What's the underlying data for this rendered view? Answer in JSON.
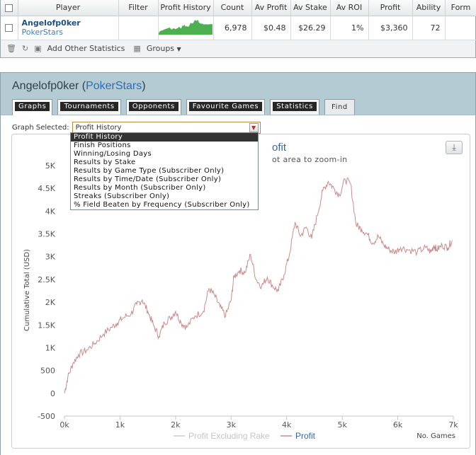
{
  "table": {
    "headers": [
      "Player",
      "Filter",
      "Profit History",
      "Count",
      "Av Profit",
      "Av Stake",
      "Av ROI",
      "Profit",
      "Ability",
      "Form"
    ],
    "row": {
      "player": "Angelofp0ker",
      "site": "PokerStars",
      "filter": "",
      "count": "6,978",
      "av_profit": "$0.48",
      "av_stake": "$26.29",
      "av_roi": "1%",
      "profit": "$3,360",
      "ability": "72",
      "form": ""
    },
    "sparkline_color": "#4caf50"
  },
  "footer": {
    "add_stats_label": "Add Other Statistics",
    "groups_label": "Groups"
  },
  "panel": {
    "title_name": "Angelofp0ker",
    "title_site": "PokerStars",
    "tabs": [
      "Graphs",
      "Tournaments",
      "Opponents",
      "Favourite Games",
      "Statistics",
      "Find"
    ],
    "active_tab": "Graphs"
  },
  "graph_select": {
    "label": "Graph Selected:",
    "value": "Profit History",
    "options": [
      "Profit History",
      "Finish Positions",
      "Winning/Losing Days",
      "Results by Stake",
      "Results by Game Type (Subscriber Only)",
      "Results by Time/Date (Subscriber Only)",
      "Results by Month (Subscriber Only)",
      "Streaks (Subscriber Only)",
      "% Field Beaten by Frequency (Subscriber Only)"
    ]
  },
  "chart": {
    "title_visible": "ofit",
    "subtitle_visible": "ot area to zoom-in",
    "line_color": "#c98b8b",
    "legend_excl_color": "#cccccc"
  },
  "chart_data": {
    "type": "line",
    "ylabel": "Cumulative Total (USD)",
    "xlabel": "No. Games",
    "xlim": [
      0,
      7000
    ],
    "ylim": [
      -500,
      5000
    ],
    "x_ticks": [
      "0k",
      "1k",
      "2k",
      "3k",
      "4k",
      "5k",
      "6k",
      "7k"
    ],
    "y_ticks": [
      "-500",
      "0",
      "500",
      "1K",
      "1.5K",
      "2K",
      "2.5K",
      "3K",
      "3.5K",
      "4K",
      "4.5K",
      "5K"
    ],
    "legend": [
      "Profit Excluding Rake",
      "Profit"
    ],
    "series": [
      {
        "name": "Profit",
        "x": [
          0,
          60,
          150,
          250,
          400,
          550,
          700,
          850,
          950,
          1050,
          1200,
          1300,
          1400,
          1500,
          1600,
          1700,
          1800,
          1900,
          2000,
          2100,
          2200,
          2350,
          2500,
          2600,
          2700,
          2800,
          2900,
          3000,
          3050,
          3150,
          3250,
          3350,
          3450,
          3550,
          3650,
          3750,
          3850,
          3950,
          4050,
          4150,
          4250,
          4350,
          4450,
          4550,
          4650,
          4750,
          4850,
          4950,
          5050,
          5150,
          5250,
          5350,
          5450,
          5550,
          5650,
          5750,
          5850,
          5950,
          6050,
          6200,
          6350,
          6500,
          6600,
          6650,
          6700,
          6800,
          6900,
          6978
        ],
        "y": [
          0,
          350,
          650,
          850,
          950,
          1100,
          1300,
          1450,
          1550,
          1650,
          1750,
          1950,
          2050,
          1800,
          1500,
          1250,
          1550,
          1650,
          1800,
          1550,
          1450,
          1700,
          1800,
          2300,
          2150,
          1900,
          1700,
          2050,
          2550,
          2700,
          2650,
          3050,
          2500,
          2350,
          2550,
          2350,
          2250,
          2600,
          3050,
          3750,
          3450,
          3650,
          3400,
          3900,
          4450,
          4650,
          4500,
          4350,
          4700,
          4600,
          3700,
          3600,
          3500,
          3300,
          3450,
          3250,
          3150,
          3100,
          3200,
          3150,
          3100,
          3200,
          3100,
          3250,
          3150,
          3250,
          3200,
          3360
        ]
      }
    ]
  }
}
